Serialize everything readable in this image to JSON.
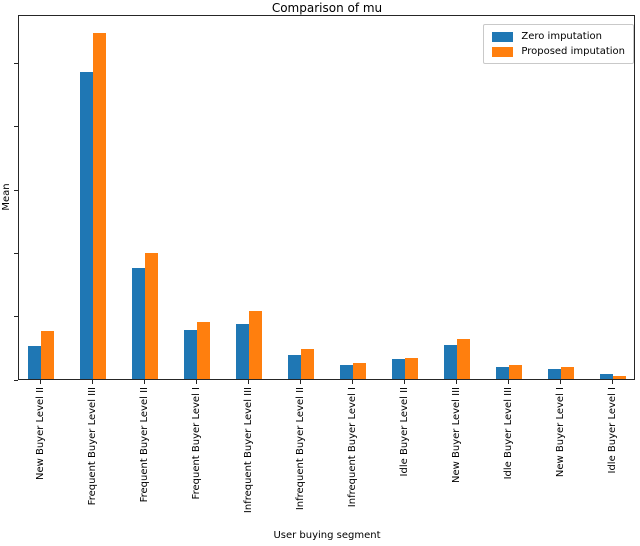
{
  "chart_data": {
    "type": "bar",
    "title": "Comparison of mu",
    "xlabel": "User buying segment",
    "ylabel": "Mean",
    "categories": [
      "New Buyer Level II",
      "Frequent Buyer Level III",
      "Frequent Buyer Level II",
      "Frequent Buyer Level I",
      "Infrequent Buyer Level III",
      "Infrequent Buyer Level II",
      "Infrequent Buyer Level I",
      "Idle Buyer Level II",
      "New Buyer Level III",
      "Idle Buyer Level III",
      "New Buyer Level I",
      "Idle Buyer Level I"
    ],
    "series": [
      {
        "name": "Zero imputation",
        "color": "#1f77b4",
        "values": [
          0.54,
          4.87,
          1.77,
          0.79,
          0.88,
          0.4,
          0.24,
          0.33,
          0.55,
          0.21,
          0.17,
          0.1
        ]
      },
      {
        "name": "Proposed imputation",
        "color": "#ff7f0e",
        "values": [
          0.78,
          5.49,
          2.01,
          0.92,
          1.09,
          0.49,
          0.27,
          0.35,
          0.65,
          0.24,
          0.21,
          0.07
        ]
      }
    ],
    "ylim": [
      0,
      5.77
    ],
    "yticks": [
      0,
      1,
      2,
      3,
      4,
      5
    ],
    "ytick_labels_visible": false,
    "xtick_label_rotation": 90,
    "grid": false,
    "legend_position": "upper right"
  }
}
